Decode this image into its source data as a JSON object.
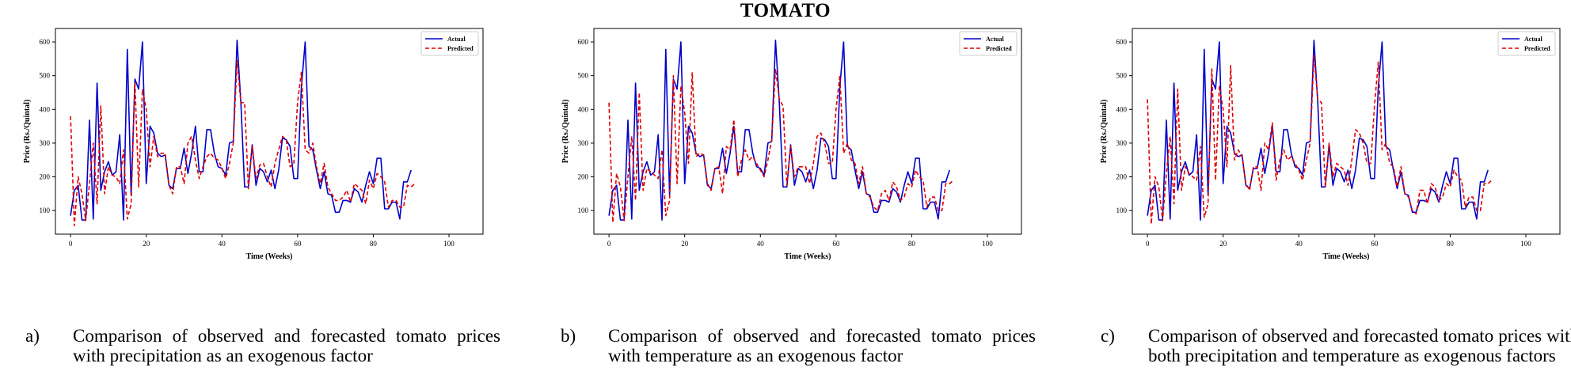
{
  "title": "TOMATO",
  "colors": {
    "actual": "#0000cc",
    "predicted": "#e00000"
  },
  "captions": [
    {
      "letter": "a)",
      "text": "Comparison of observed and forecasted tomato prices with precipitation as an exogenous factor"
    },
    {
      "letter": "b)",
      "text": "Comparison of observed and forecasted tomato prices with temperature as an exogenous factor"
    },
    {
      "letter": "c)",
      "text": "Comparison of observed and forecasted tomato prices with both precipitation and temperature as exogenous factors"
    }
  ],
  "chart_data": [
    {
      "type": "line",
      "title": "",
      "xlabel": "Time (Weeks)",
      "ylabel": "Price (Rs./Quintal)",
      "xlim": [
        -4,
        109
      ],
      "ylim": [
        30,
        640
      ],
      "xticks": [
        0,
        20,
        40,
        60,
        80,
        100
      ],
      "yticks": [
        100,
        200,
        300,
        400,
        500,
        600
      ],
      "legend": "top-right",
      "series": [
        {
          "name": "Actual",
          "style": "solid",
          "color": "#0000cc",
          "values": [
            85,
            160,
            175,
            72,
            72,
            368,
            75,
            478,
            160,
            215,
            245,
            205,
            215,
            325,
            72,
            578,
            145,
            490,
            460,
            600,
            180,
            350,
            330,
            270,
            260,
            265,
            175,
            165,
            225,
            225,
            285,
            210,
            270,
            350,
            215,
            215,
            340,
            340,
            270,
            230,
            225,
            205,
            300,
            305,
            605,
            420,
            170,
            170,
            295,
            175,
            225,
            215,
            185,
            220,
            165,
            220,
            315,
            310,
            290,
            195,
            195,
            465,
            600,
            290,
            280,
            220,
            165,
            215,
            150,
            145,
            95,
            95,
            130,
            130,
            125,
            165,
            155,
            125,
            175,
            215,
            180,
            255,
            255,
            105,
            105,
            125,
            125,
            75,
            185,
            185,
            220
          ]
        },
        {
          "name": "Predicted",
          "style": "dashed",
          "color": "#e00000",
          "values": [
            380,
            55,
            200,
            150,
            70,
            180,
            300,
            120,
            410,
            150,
            230,
            205,
            200,
            180,
            280,
            75,
            120,
            480,
            170,
            460,
            400,
            230,
            320,
            260,
            270,
            270,
            175,
            150,
            230,
            230,
            180,
            300,
            320,
            250,
            195,
            230,
            260,
            270,
            255,
            250,
            225,
            195,
            240,
            300,
            545,
            420,
            420,
            165,
            290,
            195,
            235,
            240,
            200,
            170,
            240,
            280,
            320,
            310,
            230,
            240,
            420,
            510,
            280,
            270,
            300,
            230,
            180,
            240,
            170,
            150,
            130,
            130,
            140,
            160,
            125,
            180,
            170,
            160,
            120,
            190,
            165,
            210,
            200,
            185,
            110,
            130,
            130,
            110,
            110,
            175,
            170,
            180
          ]
        }
      ]
    },
    {
      "type": "line",
      "title": "",
      "xlabel": "Time (Weeks)",
      "ylabel": "Price (Rs./Quintal)",
      "xlim": [
        -4,
        109
      ],
      "ylim": [
        30,
        640
      ],
      "xticks": [
        0,
        20,
        40,
        60,
        80,
        100
      ],
      "yticks": [
        100,
        200,
        300,
        400,
        500,
        600
      ],
      "legend": "top-right",
      "series": [
        {
          "name": "Actual",
          "style": "solid",
          "color": "#0000cc",
          "values": [
            85,
            160,
            175,
            72,
            72,
            368,
            75,
            478,
            160,
            215,
            245,
            205,
            215,
            325,
            72,
            578,
            145,
            490,
            460,
            600,
            180,
            350,
            330,
            270,
            260,
            265,
            175,
            165,
            225,
            225,
            285,
            210,
            270,
            350,
            215,
            215,
            340,
            340,
            270,
            230,
            225,
            205,
            300,
            305,
            605,
            420,
            170,
            170,
            295,
            175,
            225,
            215,
            185,
            220,
            165,
            220,
            315,
            310,
            290,
            195,
            195,
            465,
            600,
            290,
            280,
            220,
            165,
            215,
            150,
            145,
            95,
            95,
            130,
            130,
            125,
            165,
            155,
            125,
            175,
            215,
            180,
            255,
            255,
            105,
            105,
            125,
            125,
            75,
            185,
            185,
            220
          ]
        },
        {
          "name": "Predicted",
          "style": "dashed",
          "color": "#e00000",
          "values": [
            420,
            65,
            210,
            170,
            70,
            200,
            320,
            130,
            450,
            160,
            225,
            215,
            205,
            195,
            280,
            85,
            130,
            500,
            180,
            470,
            390,
            240,
            510,
            260,
            270,
            265,
            180,
            160,
            225,
            230,
            150,
            290,
            280,
            370,
            200,
            250,
            280,
            250,
            260,
            240,
            220,
            200,
            250,
            310,
            520,
            430,
            410,
            175,
            290,
            200,
            230,
            230,
            230,
            180,
            240,
            320,
            330,
            300,
            240,
            240,
            400,
            500,
            270,
            300,
            250,
            240,
            180,
            230,
            150,
            140,
            110,
            100,
            150,
            160,
            130,
            185,
            170,
            130,
            140,
            180,
            170,
            220,
            200,
            190,
            110,
            140,
            140,
            100,
            100,
            180,
            180,
            190
          ]
        }
      ]
    },
    {
      "type": "line",
      "title": "",
      "xlabel": "Time (Weeks)",
      "ylabel": "Price (Rs./Quintal)",
      "xlim": [
        -4,
        109
      ],
      "ylim": [
        30,
        640
      ],
      "xticks": [
        0,
        20,
        40,
        60,
        80,
        100
      ],
      "yticks": [
        100,
        200,
        300,
        400,
        500,
        600
      ],
      "legend": "top-right",
      "series": [
        {
          "name": "Actual",
          "style": "solid",
          "color": "#0000cc",
          "values": [
            85,
            160,
            175,
            72,
            72,
            368,
            75,
            478,
            160,
            215,
            245,
            205,
            215,
            325,
            72,
            578,
            145,
            490,
            460,
            600,
            180,
            350,
            330,
            270,
            260,
            265,
            175,
            165,
            225,
            225,
            285,
            210,
            270,
            350,
            215,
            215,
            340,
            340,
            270,
            230,
            225,
            205,
            300,
            305,
            605,
            420,
            170,
            170,
            295,
            175,
            225,
            215,
            185,
            220,
            165,
            220,
            315,
            310,
            290,
            195,
            195,
            465,
            600,
            290,
            280,
            220,
            165,
            215,
            150,
            145,
            95,
            95,
            130,
            130,
            125,
            165,
            155,
            125,
            175,
            215,
            180,
            255,
            255,
            105,
            105,
            125,
            125,
            75,
            185,
            185,
            220
          ]
        },
        {
          "name": "Predicted",
          "style": "dashed",
          "color": "#e00000",
          "values": [
            430,
            60,
            200,
            170,
            70,
            210,
            320,
            120,
            460,
            160,
            230,
            210,
            200,
            190,
            290,
            80,
            120,
            520,
            190,
            470,
            400,
            230,
            530,
            250,
            280,
            260,
            180,
            160,
            230,
            230,
            160,
            300,
            280,
            360,
            190,
            250,
            280,
            250,
            260,
            240,
            220,
            190,
            250,
            300,
            560,
            430,
            420,
            170,
            300,
            200,
            240,
            230,
            220,
            175,
            250,
            340,
            330,
            300,
            240,
            240,
            410,
            540,
            280,
            300,
            240,
            230,
            170,
            230,
            150,
            140,
            100,
            90,
            160,
            160,
            120,
            180,
            170,
            130,
            140,
            180,
            170,
            220,
            200,
            190,
            110,
            140,
            140,
            100,
            100,
            180,
            180,
            190
          ]
        }
      ]
    }
  ]
}
